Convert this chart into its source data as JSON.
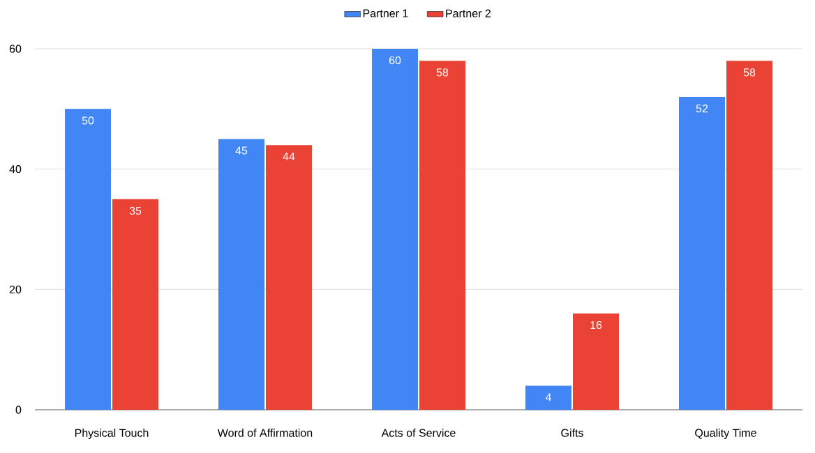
{
  "chart_data": {
    "type": "bar",
    "categories": [
      "Physical Touch",
      "Word of Affirmation",
      "Acts of Service",
      "Gifts",
      "Quality Time"
    ],
    "series": [
      {
        "name": "Partner 1",
        "color": "#4285f4",
        "values": [
          50,
          45,
          60,
          4,
          52
        ]
      },
      {
        "name": "Partner 2",
        "color": "#ea4335",
        "values": [
          35,
          44,
          58,
          16,
          58
        ]
      }
    ],
    "ylim": [
      0,
      60
    ],
    "yticks": [
      0,
      20,
      40,
      60
    ],
    "grid": "y",
    "legend": "top",
    "data_labels": true
  }
}
